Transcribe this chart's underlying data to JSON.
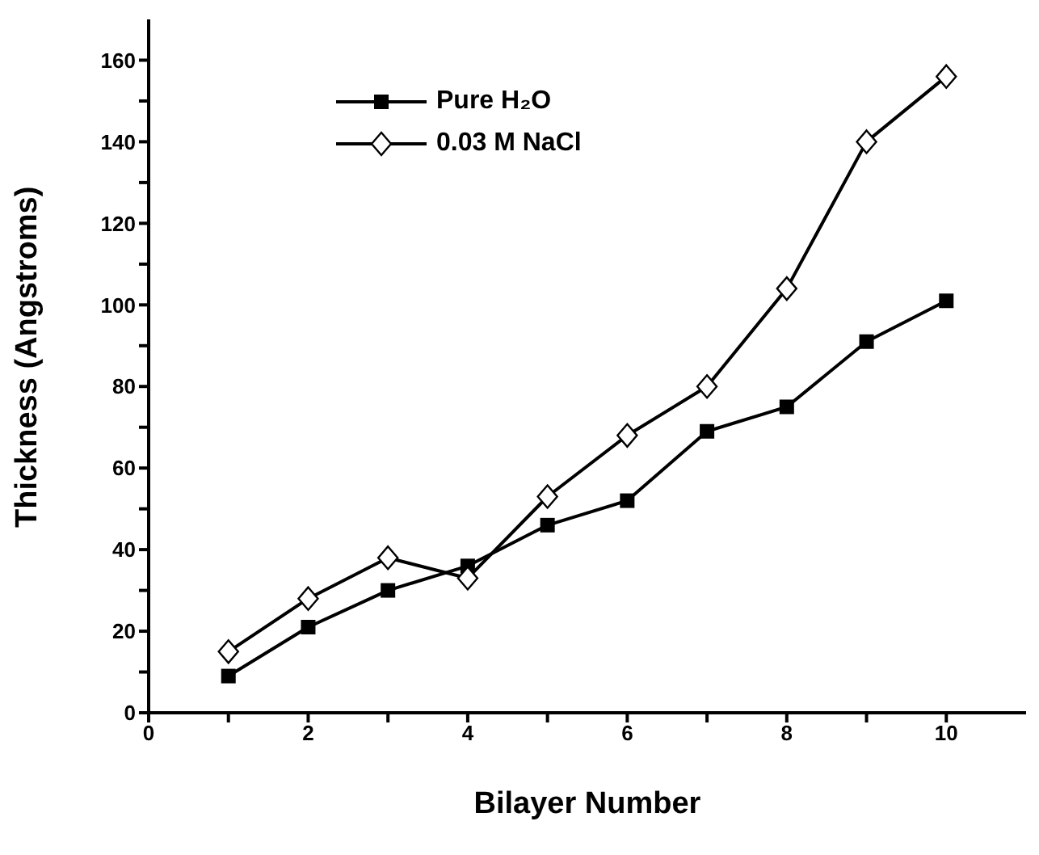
{
  "chart_data": {
    "type": "line",
    "xlabel": "Bilayer Number",
    "ylabel": "Thickness (Angstroms)",
    "x": [
      1,
      2,
      3,
      4,
      5,
      6,
      7,
      8,
      9,
      10
    ],
    "series": [
      {
        "name": "Pure H₂O",
        "color": "#000000",
        "marker": "square",
        "values": [
          9,
          21,
          30,
          36,
          46,
          52,
          69,
          75,
          91,
          101
        ]
      },
      {
        "name": "0.03 M NaCl",
        "color": "#000000",
        "marker": "diamond",
        "values": [
          15,
          28,
          38,
          33,
          53,
          68,
          80,
          104,
          140,
          156
        ]
      }
    ],
    "xlim": [
      0,
      11
    ],
    "xticks": [
      0,
      {
        "value": 1,
        "label": null
      },
      2,
      {
        "value": 3,
        "label": null
      },
      4,
      {
        "value": 5,
        "label": null
      },
      6,
      {
        "value": 7,
        "label": null
      },
      8,
      {
        "value": 9,
        "label": null
      },
      10
    ],
    "ylim": [
      0,
      170
    ],
    "yticks": [
      0,
      {
        "value": 10,
        "label": null
      },
      20,
      {
        "value": 30,
        "label": null
      },
      40,
      {
        "value": 50,
        "label": null
      },
      60,
      {
        "value": 70,
        "label": null
      },
      80,
      {
        "value": 90,
        "label": null
      },
      100,
      {
        "value": 110,
        "label": null
      },
      120,
      {
        "value": 130,
        "label": null
      },
      140,
      {
        "value": 150,
        "label": null
      },
      160
    ],
    "grid": false,
    "legend": "top left",
    "line_style": "solid"
  }
}
